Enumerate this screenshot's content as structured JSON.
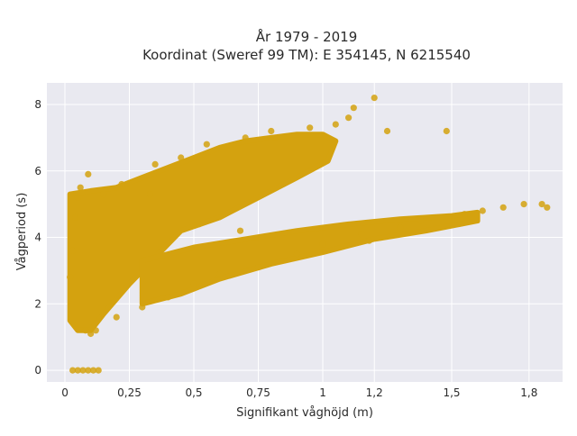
{
  "chart_data": {
    "type": "scatter",
    "title": "År 1979 - 2019",
    "subtitle": "Koordinat (Sweref 99 TM): E 354145, N 6215540",
    "xlabel": "Signifikant våghöjd (m)",
    "ylabel": "Vågperiod (s)",
    "xlim": [
      -0.07,
      1.93
    ],
    "ylim": [
      -0.35,
      8.65
    ],
    "x_ticks": [
      {
        "value": 0,
        "label": "0"
      },
      {
        "value": 0.25,
        "label": "0,25"
      },
      {
        "value": 0.5,
        "label": "0,5"
      },
      {
        "value": 0.75,
        "label": "0,75"
      },
      {
        "value": 1,
        "label": "1"
      },
      {
        "value": 1.2,
        "label": "1,2"
      },
      {
        "value": 1.5,
        "label": "1,5"
      },
      {
        "value": 1.8,
        "label": "1,8"
      }
    ],
    "y_ticks": [
      {
        "value": 0,
        "label": "0"
      },
      {
        "value": 2,
        "label": "2"
      },
      {
        "value": 4,
        "label": "4"
      },
      {
        "value": 6,
        "label": "6"
      },
      {
        "value": 8,
        "label": "8"
      }
    ],
    "grid": true,
    "legend": "none",
    "marker_color": "#D4A20F",
    "plot_background": "#E9E9F0",
    "series": [
      {
        "values": [
          [
            0.03,
            0.0
          ],
          [
            0.05,
            0.0
          ],
          [
            0.07,
            0.0
          ],
          [
            0.09,
            0.0
          ],
          [
            0.11,
            0.0
          ],
          [
            0.13,
            0.0
          ],
          [
            0.02,
            2.8
          ],
          [
            0.03,
            3.6
          ],
          [
            0.04,
            4.6
          ],
          [
            0.05,
            5.2
          ],
          [
            0.06,
            5.5
          ],
          [
            0.08,
            1.2
          ],
          [
            0.09,
            5.9
          ],
          [
            0.1,
            1.1
          ],
          [
            0.12,
            1.2
          ],
          [
            0.15,
            5.3
          ],
          [
            0.2,
            1.6
          ],
          [
            0.22,
            5.6
          ],
          [
            0.3,
            1.9
          ],
          [
            0.35,
            6.2
          ],
          [
            0.4,
            2.2
          ],
          [
            0.45,
            6.4
          ],
          [
            0.5,
            2.6
          ],
          [
            0.55,
            6.8
          ],
          [
            0.6,
            2.9
          ],
          [
            0.7,
            7.0
          ],
          [
            0.75,
            3.1
          ],
          [
            0.8,
            7.2
          ],
          [
            0.9,
            3.5
          ],
          [
            0.95,
            7.3
          ],
          [
            1.0,
            3.8
          ],
          [
            1.05,
            7.4
          ],
          [
            1.1,
            7.6
          ],
          [
            1.12,
            7.9
          ],
          [
            1.15,
            4.1
          ],
          [
            1.2,
            8.2
          ],
          [
            1.25,
            7.2
          ],
          [
            1.3,
            4.3
          ],
          [
            1.38,
            4.5
          ],
          [
            1.48,
            7.2
          ],
          [
            1.55,
            4.7
          ],
          [
            1.62,
            4.8
          ],
          [
            1.7,
            4.9
          ],
          [
            1.78,
            5.0
          ],
          [
            1.85,
            5.0
          ],
          [
            1.87,
            4.9
          ],
          [
            0.33,
            5.3
          ],
          [
            0.52,
            4.4
          ],
          [
            0.68,
            4.2
          ],
          [
            1.18,
            3.9
          ]
        ]
      }
    ]
  }
}
